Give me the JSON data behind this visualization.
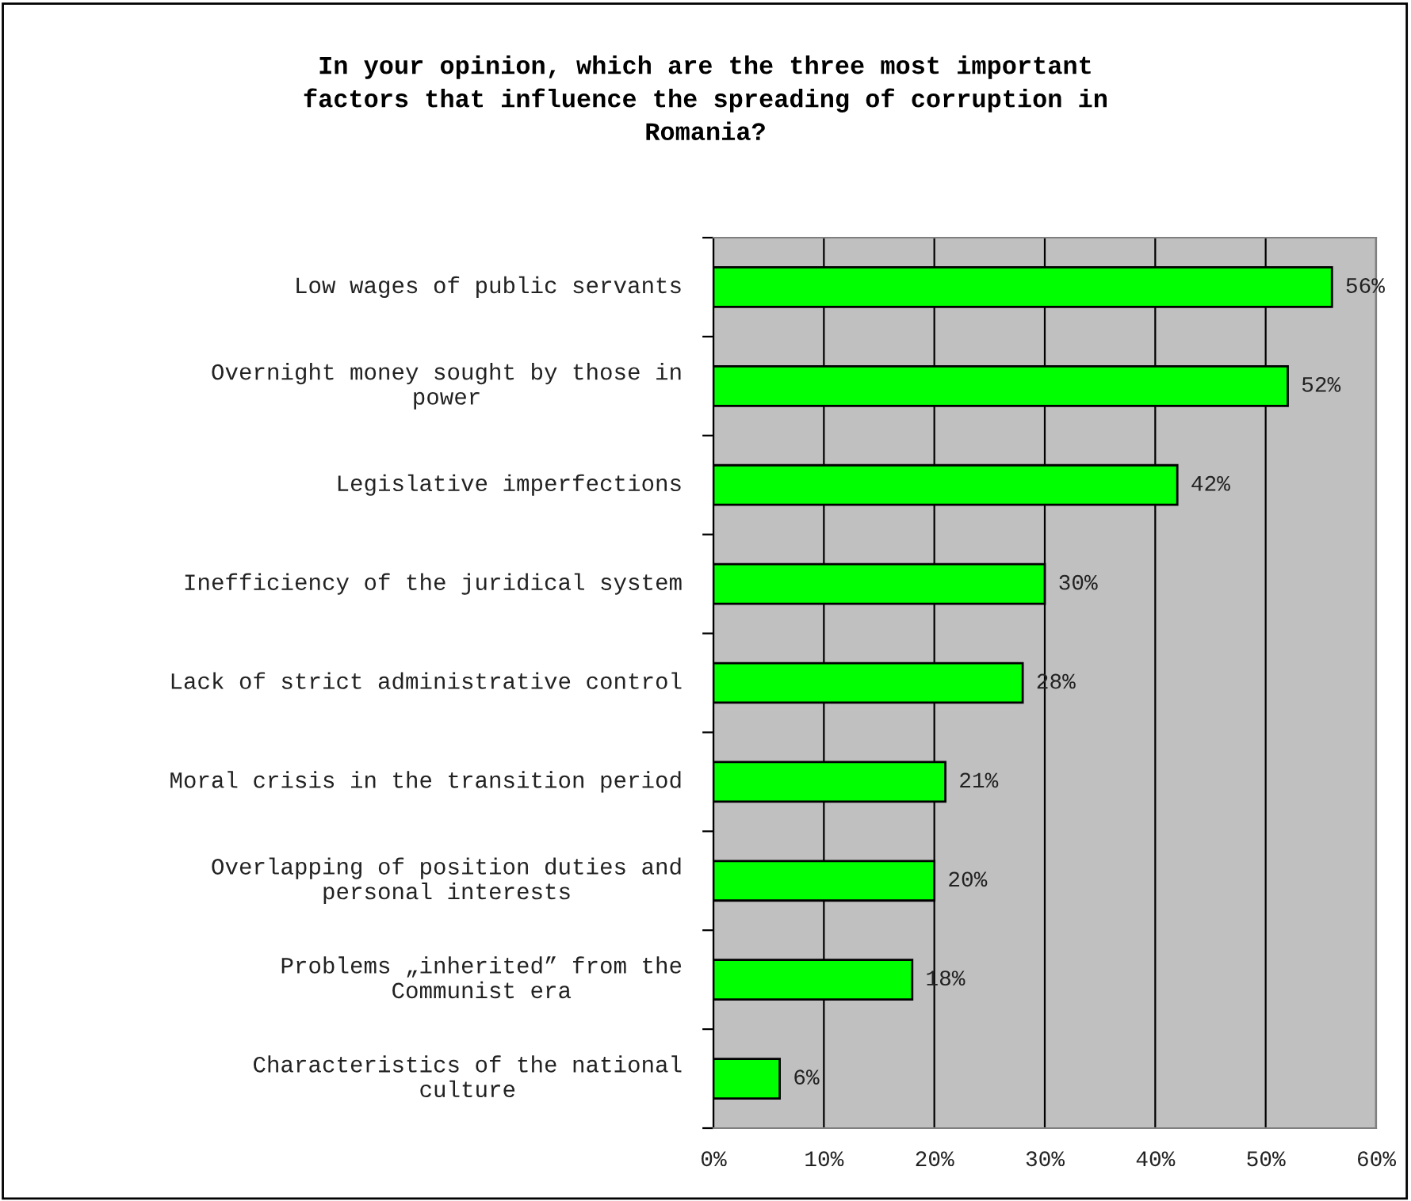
{
  "chart_data": {
    "type": "bar",
    "orientation": "horizontal",
    "title": "In your opinion, which are the three most important\nfactors that influence the spreading of corruption in\nRomania?",
    "categories": [
      "Low wages of public servants",
      "Overnight money sought by those in\npower",
      "Legislative imperfections",
      "Inefficiency of the juridical system",
      "Lack of strict administrative control",
      "Moral crisis in the transition period",
      "Overlapping of position duties and\npersonal interests",
      "Problems „inherited” from the\nCommunist era",
      "Characteristics of the national\nculture"
    ],
    "values": [
      56,
      52,
      42,
      30,
      28,
      21,
      20,
      18,
      6
    ],
    "value_labels": [
      "56%",
      "52%",
      "42%",
      "30%",
      "28%",
      "21%",
      "20%",
      "18%",
      "6%"
    ],
    "color": "#00ff00",
    "xlim": [
      0,
      60
    ],
    "xticks": [
      {
        "value": 0,
        "label": "0%"
      },
      {
        "value": 10,
        "label": "10%"
      },
      {
        "value": 20,
        "label": "20%"
      },
      {
        "value": 30,
        "label": "30%"
      },
      {
        "value": 40,
        "label": "40%"
      },
      {
        "value": 50,
        "label": "50%"
      },
      {
        "value": 60,
        "label": "60%"
      }
    ],
    "grid": "x"
  }
}
